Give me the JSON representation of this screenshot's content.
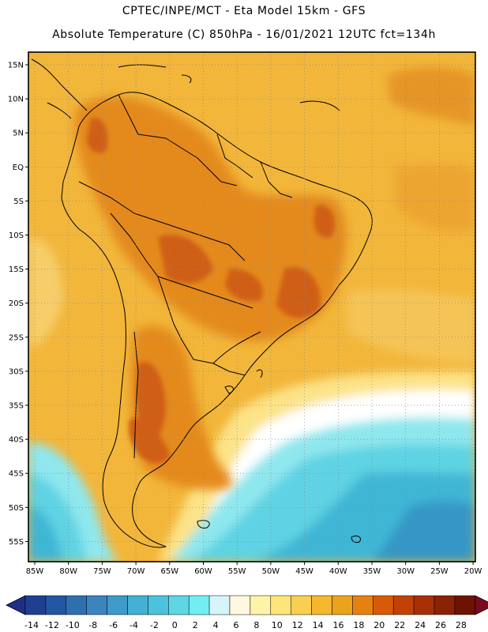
{
  "header": {
    "title_line1": "CPTEC/INPE/MCT -  Eta Model 15km - GFS",
    "title_line2": "Absolute Temperature (C) 850hPa - 16/01/2021 12UTC fct=134h"
  },
  "map": {
    "lat_labels": [
      "15N",
      "10N",
      "5N",
      "EQ",
      "5S",
      "10S",
      "15S",
      "20S",
      "25S",
      "30S",
      "35S",
      "40S",
      "45S",
      "50S",
      "55S"
    ],
    "lon_labels": [
      "85W",
      "80W",
      "75W",
      "70W",
      "65W",
      "60W",
      "55W",
      "50W",
      "45W",
      "40W",
      "35W",
      "30W",
      "25W",
      "20W"
    ],
    "frame_color": "#000000",
    "coast_color": "#000000"
  },
  "colorbar": {
    "labels": [
      "-14",
      "-12",
      "-10",
      "-8",
      "-6",
      "-4",
      "-2",
      "0",
      "2",
      "4",
      "6",
      "8",
      "10",
      "12",
      "14",
      "16",
      "18",
      "20",
      "22",
      "24",
      "26",
      "28"
    ],
    "colors": [
      "#1f3f92",
      "#2356a3",
      "#2e6fb0",
      "#3a85bd",
      "#3e9bc9",
      "#44b0d4",
      "#4cc3dc",
      "#5ed6e6",
      "#72eef2",
      "#d6f5fb",
      "#fff7df",
      "#fff3a8",
      "#fde57c",
      "#f9cf52",
      "#f5b72e",
      "#eba21c",
      "#e5820f",
      "#d85a08",
      "#c24205",
      "#a82f05",
      "#8a2205",
      "#6e1204"
    ],
    "left_arrow_color": "#1f2f88",
    "right_arrow_color": "#7a0a20"
  },
  "field": {
    "background": "#f2b63a",
    "warm_tone": "#e48a1e",
    "hot_tone": "#cf5f14",
    "cold_tones": [
      "#fce388",
      "#ffffff",
      "#8fe7ee",
      "#5fd3e3",
      "#3fb6d5",
      "#3597c6"
    ]
  }
}
